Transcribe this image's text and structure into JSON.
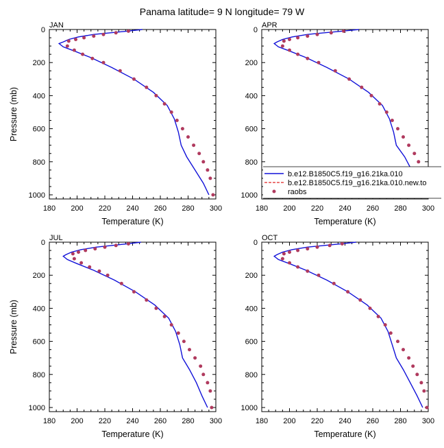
{
  "figure": {
    "title": "Panama  latitude= 9 N longitude= 79 W"
  },
  "colors": {
    "model": "#1010d8",
    "model_new": "#e02020",
    "raobs": "#b03a5e"
  },
  "legend": {
    "entries": [
      {
        "label": "b.e12.B1850C5.f19_g16.21ka.010",
        "style": "solid-line"
      },
      {
        "label": "b.e12.B1850C5.f19_g16.21ka.010.new.to",
        "style": "dashed-line"
      },
      {
        "label": "raobs",
        "style": "dot"
      }
    ]
  },
  "chart_data": [
    {
      "type": "line",
      "panel_label": "JAN",
      "xlabel": "Temperature (K)",
      "ylabel": "Pressure (mb)",
      "xlim": [
        180,
        300
      ],
      "ylim": [
        0,
        1025
      ],
      "y_inverted": true,
      "xticks": [
        "180",
        "200",
        "220",
        "240",
        "260",
        "280",
        "300"
      ],
      "yticks": [
        "0",
        "200",
        "400",
        "600",
        "800",
        "1000"
      ],
      "series": [
        {
          "name": "b.e12.B1850C5.f19_g16.21ka.010",
          "kind": "line",
          "x": [
            247,
            236,
            224,
            212,
            201,
            194,
            190,
            187,
            190,
            198,
            210,
            225,
            241,
            255,
            265,
            270,
            273,
            275,
            279,
            285,
            291,
            295
          ],
          "y": [
            0,
            10,
            20,
            30,
            45,
            60,
            75,
            85,
            105,
            130,
            170,
            230,
            300,
            380,
            460,
            540,
            620,
            700,
            770,
            850,
            930,
            1000
          ]
        },
        {
          "name": "raobs",
          "kind": "points",
          "x": [
            237,
            228,
            219,
            212,
            205,
            199,
            194,
            193,
            198,
            204,
            211,
            219,
            231,
            241,
            250,
            257,
            263,
            268,
            272,
            276,
            280,
            284,
            288,
            291,
            294,
            296,
            298
          ],
          "y": [
            10,
            20,
            30,
            40,
            50,
            60,
            70,
            100,
            125,
            150,
            175,
            200,
            250,
            300,
            350,
            400,
            450,
            500,
            550,
            600,
            650,
            700,
            750,
            800,
            850,
            900,
            1000
          ]
        }
      ]
    },
    {
      "type": "line",
      "panel_label": "APR",
      "xlabel": "Temperature (K)",
      "ylabel": "",
      "xlim": [
        180,
        300
      ],
      "ylim": [
        0,
        1025
      ],
      "y_inverted": true,
      "xticks": [
        "180",
        "200",
        "220",
        "240",
        "260",
        "280",
        "300"
      ],
      "yticks": [
        "0",
        "200",
        "400",
        "600",
        "800",
        "1000"
      ],
      "series": [
        {
          "name": "b.e12.B1850C5.f19_g16.21ka.010",
          "kind": "line",
          "x": [
            250,
            238,
            225,
            213,
            202,
            195,
            191,
            189,
            192,
            200,
            212,
            227,
            243,
            257,
            267,
            272,
            275,
            277,
            283,
            288,
            292,
            296
          ],
          "y": [
            0,
            10,
            20,
            30,
            45,
            60,
            75,
            85,
            105,
            130,
            170,
            230,
            300,
            380,
            460,
            540,
            620,
            700,
            770,
            850,
            930,
            1000
          ]
        },
        {
          "name": "raobs",
          "kind": "points",
          "x": [
            239,
            230,
            220,
            213,
            206,
            200,
            196,
            195,
            200,
            206,
            213,
            221,
            233,
            243,
            252,
            259,
            265,
            270,
            274,
            278,
            282,
            286,
            290,
            293,
            296,
            298,
            300
          ],
          "y": [
            10,
            20,
            30,
            40,
            50,
            60,
            70,
            100,
            125,
            150,
            175,
            200,
            250,
            300,
            350,
            400,
            450,
            500,
            550,
            600,
            650,
            700,
            750,
            800,
            850,
            900,
            1000
          ]
        }
      ]
    },
    {
      "type": "line",
      "panel_label": "JUL",
      "xlabel": "Temperature (K)",
      "ylabel": "Pressure (mb)",
      "xlim": [
        180,
        300
      ],
      "ylim": [
        0,
        1025
      ],
      "y_inverted": true,
      "xticks": [
        "180",
        "200",
        "220",
        "240",
        "260",
        "280",
        "300"
      ],
      "yticks": [
        "0",
        "200",
        "400",
        "600",
        "800",
        "1000"
      ],
      "series": [
        {
          "name": "b.e12.B1850C5.f19_g16.21ka.010",
          "kind": "line",
          "x": [
            246,
            236,
            225,
            214,
            203,
            196,
            192,
            190,
            193,
            200,
            212,
            227,
            242,
            256,
            266,
            271,
            274,
            276,
            281,
            286,
            290,
            294
          ],
          "y": [
            0,
            10,
            20,
            30,
            45,
            60,
            75,
            85,
            105,
            130,
            170,
            230,
            300,
            380,
            460,
            540,
            620,
            700,
            770,
            850,
            930,
            1000
          ]
        },
        {
          "name": "raobs",
          "kind": "points",
          "x": [
            237,
            228,
            220,
            213,
            206,
            201,
            197,
            198,
            203,
            209,
            216,
            222,
            232,
            241,
            250,
            257,
            263,
            268,
            273,
            277,
            281,
            285,
            289,
            291,
            294,
            296,
            297
          ],
          "y": [
            10,
            20,
            30,
            40,
            50,
            60,
            70,
            100,
            125,
            150,
            175,
            200,
            250,
            300,
            350,
            400,
            450,
            500,
            550,
            600,
            650,
            700,
            750,
            800,
            850,
            900,
            1000
          ]
        }
      ]
    },
    {
      "type": "line",
      "panel_label": "OCT",
      "xlabel": "Temperature (K)",
      "ylabel": "",
      "xlim": [
        180,
        300
      ],
      "ylim": [
        0,
        1025
      ],
      "y_inverted": true,
      "xticks": [
        "180",
        "200",
        "220",
        "240",
        "260",
        "280",
        "300"
      ],
      "yticks": [
        "0",
        "200",
        "400",
        "600",
        "800",
        "1000"
      ],
      "series": [
        {
          "name": "b.e12.B1850C5.f19_g16.21ka.010",
          "kind": "line",
          "x": [
            248,
            237,
            225,
            213,
            202,
            195,
            191,
            189,
            192,
            200,
            212,
            227,
            242,
            256,
            266,
            271,
            274,
            277,
            282,
            287,
            292,
            296
          ],
          "y": [
            0,
            10,
            20,
            30,
            45,
            60,
            75,
            85,
            105,
            130,
            170,
            230,
            300,
            380,
            460,
            540,
            620,
            700,
            770,
            850,
            930,
            1000
          ]
        },
        {
          "name": "raobs",
          "kind": "points",
          "x": [
            238,
            229,
            220,
            213,
            206,
            200,
            196,
            195,
            200,
            206,
            213,
            221,
            232,
            242,
            251,
            258,
            264,
            269,
            273,
            278,
            282,
            286,
            289,
            292,
            295,
            297,
            299
          ],
          "y": [
            10,
            20,
            30,
            40,
            50,
            60,
            70,
            100,
            125,
            150,
            175,
            200,
            250,
            300,
            350,
            400,
            450,
            500,
            550,
            600,
            650,
            700,
            750,
            800,
            850,
            900,
            1000
          ]
        }
      ]
    }
  ]
}
